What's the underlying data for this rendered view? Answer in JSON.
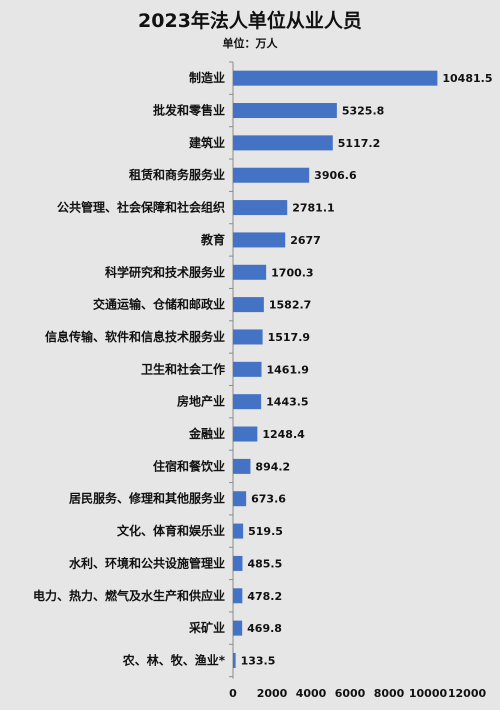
{
  "chart_data": {
    "type": "bar",
    "orientation": "horizontal",
    "title": "2023年法人单位从业人员",
    "subtitle": "单位：万人",
    "categories": [
      "制造业",
      "批发和零售业",
      "建筑业",
      "租赁和商务服务业",
      "公共管理、社会保障和社会组织",
      "教育",
      "科学研究和技术服务业",
      "交通运输、仓储和邮政业",
      "信息传输、软件和信息技术服务业",
      "卫生和社会工作",
      "房地产业",
      "金融业",
      "住宿和餐饮业",
      "居民服务、修理和其他服务业",
      "文化、体育和娱乐业",
      "水利、环境和公共设施管理业",
      "电力、热力、燃气及水生产和供应业",
      "采矿业",
      "农、林、牧、渔业*"
    ],
    "values": [
      10481.5,
      5325.8,
      5117.2,
      3906.6,
      2781.1,
      2677,
      1700.3,
      1582.7,
      1517.9,
      1461.9,
      1443.5,
      1248.4,
      894.2,
      673.6,
      519.5,
      485.5,
      478.2,
      469.8,
      133.5
    ],
    "value_labels": [
      "10481.5",
      "5325.8",
      "5117.2",
      "3906.6",
      "2781.1",
      "2677",
      "1700.3",
      "1582.7",
      "1517.9",
      "1461.9",
      "1443.5",
      "1248.4",
      "894.2",
      "673.6",
      "519.5",
      "485.5",
      "478.2",
      "469.8",
      "133.5"
    ],
    "xlim": [
      0,
      12000
    ],
    "xticks": [
      "0",
      "2000",
      "4000",
      "6000",
      "8000",
      "10000",
      "12000"
    ],
    "grid": false,
    "bar_color": "#4472c4"
  }
}
